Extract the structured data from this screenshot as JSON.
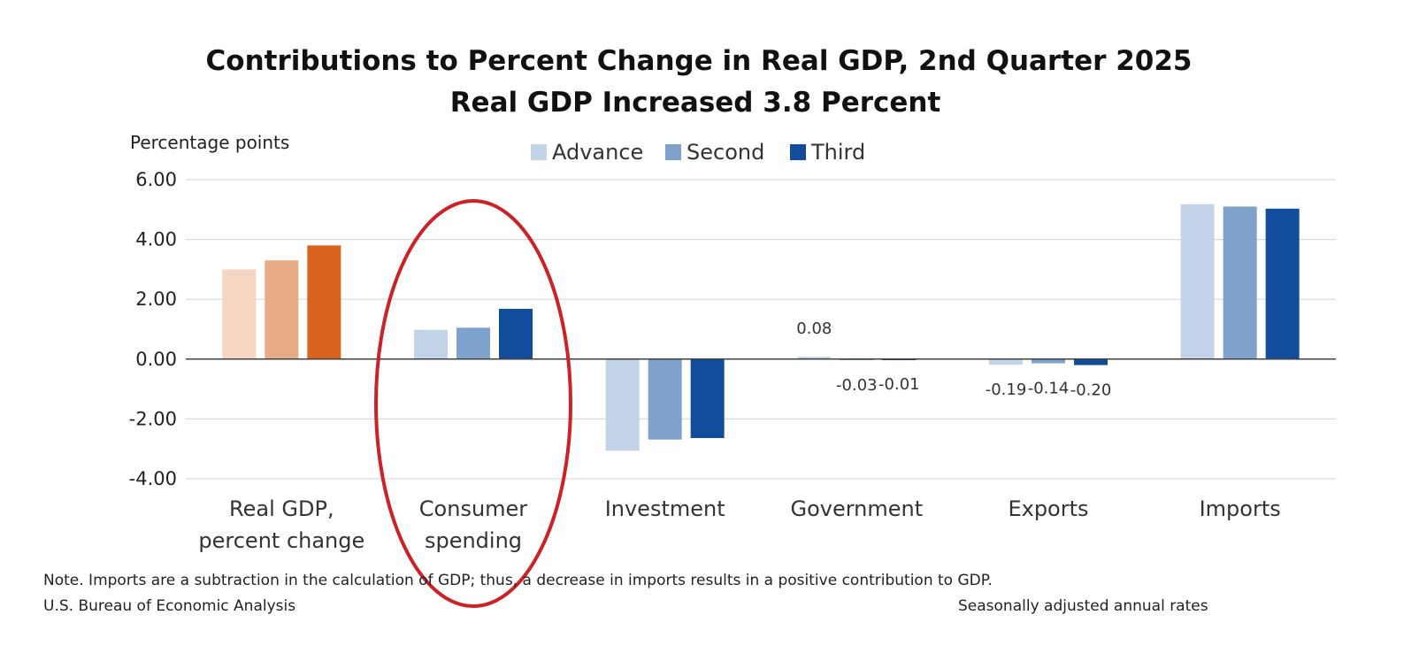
{
  "chart_data": {
    "type": "bar",
    "title": "Contributions to Percent Change in Real GDP, 2nd Quarter 2025",
    "subtitle": "Real GDP Increased 3.8 Percent",
    "ylabel": "Percentage points",
    "ylim": [
      -4,
      6
    ],
    "yticks": [
      6,
      4,
      2,
      0,
      -2,
      -4
    ],
    "ytick_labels": [
      "6.00",
      "4.00",
      "2.00",
      "0.00",
      "-2.00",
      "-4.00"
    ],
    "grid": true,
    "legend_position": "top-center",
    "categories": [
      [
        "Real GDP,",
        "percent change"
      ],
      [
        "Consumer",
        "spending"
      ],
      [
        "Investment"
      ],
      [
        "Government"
      ],
      [
        "Exports"
      ],
      [
        "Imports"
      ]
    ],
    "series": [
      {
        "name": "Advance",
        "values": [
          3.0,
          0.98,
          -3.06,
          0.08,
          -0.19,
          5.18
        ]
      },
      {
        "name": "Second",
        "values": [
          3.3,
          1.05,
          -2.69,
          -0.03,
          -0.14,
          5.1
        ]
      },
      {
        "name": "Third",
        "values": [
          3.8,
          1.68,
          -2.64,
          -0.01,
          -0.2,
          5.03
        ]
      }
    ],
    "data_labels": [
      {
        "category": 3,
        "series": 0,
        "text": "0.08"
      },
      {
        "category": 3,
        "series": 1,
        "text": "-0.03"
      },
      {
        "category": 3,
        "series": 2,
        "text": "-0.01"
      },
      {
        "category": 4,
        "series": 0,
        "text": "-0.19"
      },
      {
        "category": 4,
        "series": 1,
        "text": "-0.14"
      },
      {
        "category": 4,
        "series": 2,
        "text": "-0.20"
      }
    ],
    "annotation": {
      "type": "circle-highlight",
      "category": 1,
      "color": "#cc2127"
    },
    "notes": [
      "Note. Imports are a subtraction in the calculation of GDP; thus, a decrease in imports results in a positive contribution to GDP.",
      "U.S. Bureau of Economic Analysis",
      "Seasonally adjusted annual rates"
    ],
    "colors": {
      "series": [
        "#c3d4e9",
        "#7fa2cc",
        "#114d9c"
      ],
      "first_category": [
        "#f6d5c2",
        "#e9ab86",
        "#d9631e"
      ],
      "axis": "#404040",
      "grid": "#d9d9d9"
    }
  }
}
